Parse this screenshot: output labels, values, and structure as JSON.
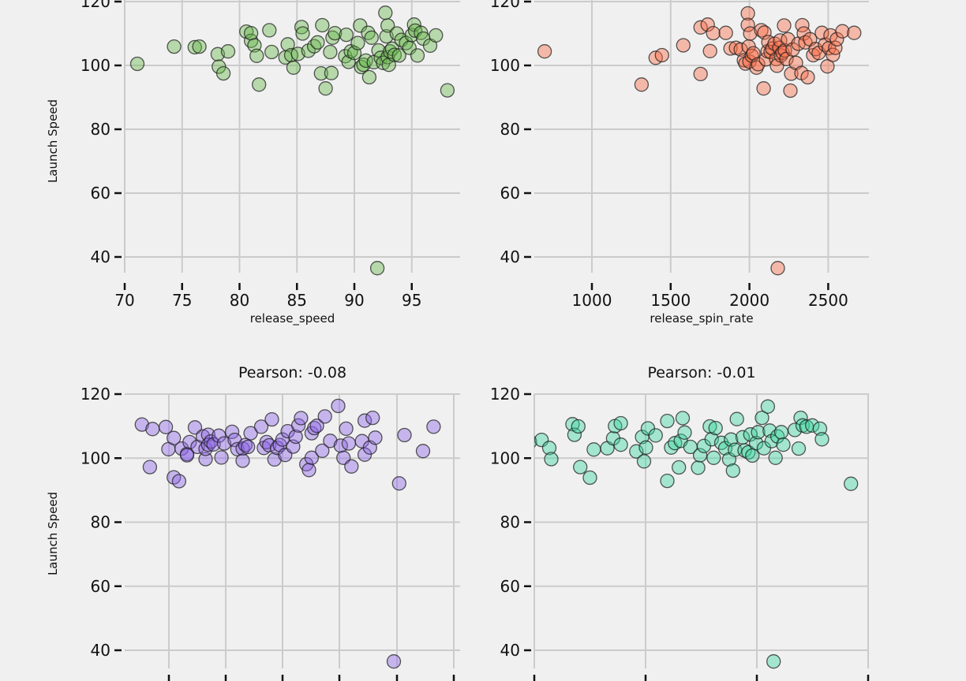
{
  "chart_data": [
    {
      "type": "scatter",
      "xlabel": "release_speed",
      "ylabel": "Launch Speed",
      "title": "",
      "color": "#66b84a",
      "x_ticks": [
        70,
        75,
        80,
        85,
        90,
        95
      ],
      "y_ticks": [
        40,
        60,
        80,
        100,
        120
      ],
      "xlim": [
        69,
        98.5
      ],
      "ylim": [
        33,
        120.5
      ],
      "grid": true,
      "points": [
        [
          71.1,
          100.5
        ],
        [
          74.3,
          105.9
        ],
        [
          76.1,
          105.7
        ],
        [
          76.5,
          105.9
        ],
        [
          78.1,
          103.5
        ],
        [
          78.2,
          99.6
        ],
        [
          78.6,
          97.5
        ],
        [
          79.0,
          104.4
        ],
        [
          80.6,
          110.6
        ],
        [
          81.0,
          107.7
        ],
        [
          81.0,
          110.1
        ],
        [
          81.3,
          106.3
        ],
        [
          81.5,
          103.0
        ],
        [
          81.7,
          94.0
        ],
        [
          82.6,
          111.0
        ],
        [
          82.8,
          104.2
        ],
        [
          84.0,
          102.5
        ],
        [
          84.2,
          106.6
        ],
        [
          84.5,
          103.2
        ],
        [
          84.7,
          99.3
        ],
        [
          85.1,
          103.6
        ],
        [
          85.4,
          112.0
        ],
        [
          85.5,
          110.0
        ],
        [
          86.0,
          104.6
        ],
        [
          86.5,
          106.0
        ],
        [
          86.8,
          107.2
        ],
        [
          87.1,
          97.5
        ],
        [
          87.2,
          112.6
        ],
        [
          87.5,
          92.8
        ],
        [
          87.9,
          104.2
        ],
        [
          88.0,
          97.6
        ],
        [
          88.1,
          108.7
        ],
        [
          88.3,
          110.1
        ],
        [
          89.2,
          102.9
        ],
        [
          89.3,
          109.6
        ],
        [
          89.5,
          101.1
        ],
        [
          89.7,
          104.4
        ],
        [
          90.0,
          103.9
        ],
        [
          90.3,
          107.0
        ],
        [
          90.5,
          112.5
        ],
        [
          90.6,
          99.5
        ],
        [
          90.8,
          100.2
        ],
        [
          91.0,
          101.5
        ],
        [
          91.2,
          110.2
        ],
        [
          91.3,
          96.3
        ],
        [
          91.5,
          108.7
        ],
        [
          91.7,
          101.0
        ],
        [
          92.0,
          36.5
        ],
        [
          92.1,
          104.7
        ],
        [
          92.3,
          102.4
        ],
        [
          92.5,
          100.8
        ],
        [
          92.7,
          116.5
        ],
        [
          92.8,
          109.1
        ],
        [
          92.9,
          112.5
        ],
        [
          92.9,
          102.6
        ],
        [
          93.0,
          100.2
        ],
        [
          93.1,
          104.4
        ],
        [
          93.3,
          105.2
        ],
        [
          93.5,
          103.3
        ],
        [
          93.7,
          110.0
        ],
        [
          93.9,
          103.1
        ],
        [
          94.1,
          108.0
        ],
        [
          94.5,
          107.0
        ],
        [
          94.8,
          105.5
        ],
        [
          95.0,
          109.5
        ],
        [
          95.2,
          112.8
        ],
        [
          95.3,
          110.9
        ],
        [
          95.5,
          103.1
        ],
        [
          95.8,
          110.2
        ],
        [
          96.0,
          108.4
        ],
        [
          96.6,
          106.2
        ],
        [
          97.1,
          109.4
        ],
        [
          98.1,
          92.2
        ]
      ]
    },
    {
      "type": "scatter",
      "xlabel": "release_spin_rate",
      "ylabel": "",
      "title": "",
      "color": "#fa6c45",
      "x_ticks": [
        1000,
        1500,
        2000,
        2500
      ],
      "y_ticks": [
        40,
        60,
        80,
        100,
        120
      ],
      "xlim": [
        600,
        2750
      ],
      "ylim": [
        33,
        120.5
      ],
      "grid": true,
      "points": [
        [
          700,
          104.4
        ],
        [
          1315,
          94.0
        ],
        [
          1405,
          102.4
        ],
        [
          1445,
          103.2
        ],
        [
          1580,
          106.3
        ],
        [
          1690,
          111.9
        ],
        [
          1690,
          97.3
        ],
        [
          1735,
          112.8
        ],
        [
          1750,
          104.5
        ],
        [
          1770,
          110.1
        ],
        [
          1850,
          110.2
        ],
        [
          1880,
          105.3
        ],
        [
          1915,
          105.5
        ],
        [
          1945,
          105.0
        ],
        [
          1965,
          101.6
        ],
        [
          1975,
          100.6
        ],
        [
          1990,
          116.3
        ],
        [
          1990,
          112.7
        ],
        [
          1995,
          105.9
        ],
        [
          2000,
          101.2
        ],
        [
          2005,
          110.0
        ],
        [
          2015,
          103.0
        ],
        [
          2025,
          103.8
        ],
        [
          2045,
          99.3
        ],
        [
          2055,
          100.4
        ],
        [
          2075,
          111.0
        ],
        [
          2090,
          92.8
        ],
        [
          2095,
          110.3
        ],
        [
          2105,
          101.9
        ],
        [
          2115,
          104.4
        ],
        [
          2120,
          107.3
        ],
        [
          2135,
          104.2
        ],
        [
          2145,
          105.3
        ],
        [
          2160,
          106.8
        ],
        [
          2170,
          102.0
        ],
        [
          2175,
          99.9
        ],
        [
          2180,
          36.5
        ],
        [
          2190,
          105.5
        ],
        [
          2195,
          107.8
        ],
        [
          2200,
          103.1
        ],
        [
          2210,
          104.0
        ],
        [
          2220,
          112.5
        ],
        [
          2225,
          104.7
        ],
        [
          2235,
          102.0
        ],
        [
          2245,
          108.2
        ],
        [
          2260,
          92.1
        ],
        [
          2265,
          97.4
        ],
        [
          2275,
          105.0
        ],
        [
          2295,
          100.8
        ],
        [
          2310,
          106.8
        ],
        [
          2330,
          97.6
        ],
        [
          2335,
          112.6
        ],
        [
          2345,
          110.0
        ],
        [
          2355,
          107.2
        ],
        [
          2370,
          96.3
        ],
        [
          2385,
          108.2
        ],
        [
          2405,
          103.2
        ],
        [
          2420,
          105.1
        ],
        [
          2440,
          103.9
        ],
        [
          2460,
          110.2
        ],
        [
          2480,
          106.5
        ],
        [
          2495,
          99.7
        ],
        [
          2505,
          105.4
        ],
        [
          2515,
          109.4
        ],
        [
          2530,
          103.3
        ],
        [
          2545,
          105.5
        ],
        [
          2555,
          108.2
        ],
        [
          2590,
          110.7
        ],
        [
          2665,
          110.2
        ]
      ]
    },
    {
      "type": "scatter",
      "xlabel": "",
      "ylabel": "Launch Speed",
      "title": "Pearson: -0.08",
      "color": "#8c64e6",
      "y_ticks": [
        40,
        60,
        80,
        100,
        120
      ],
      "ylim": [
        33,
        120.5
      ],
      "grid": true,
      "points": [
        [
          0.08,
          107.4
        ],
        [
          0.19,
          110.5
        ],
        [
          0.22,
          97.2
        ],
        [
          0.23,
          109.1
        ],
        [
          0.28,
          109.7
        ],
        [
          0.29,
          102.8
        ],
        [
          0.31,
          106.3
        ],
        [
          0.31,
          94.0
        ],
        [
          0.33,
          92.8
        ],
        [
          0.34,
          103.0
        ],
        [
          0.36,
          101.3
        ],
        [
          0.36,
          100.9
        ],
        [
          0.37,
          105.0
        ],
        [
          0.39,
          109.6
        ],
        [
          0.4,
          103.5
        ],
        [
          0.42,
          106.8
        ],
        [
          0.43,
          99.7
        ],
        [
          0.43,
          102.9
        ],
        [
          0.44,
          107.3
        ],
        [
          0.44,
          104.2
        ],
        [
          0.45,
          105.2
        ],
        [
          0.46,
          104.3
        ],
        [
          0.48,
          107.0
        ],
        [
          0.49,
          100.2
        ],
        [
          0.5,
          104.6
        ],
        [
          0.53,
          108.2
        ],
        [
          0.54,
          105.7
        ],
        [
          0.55,
          102.8
        ],
        [
          0.57,
          103.0
        ],
        [
          0.57,
          99.2
        ],
        [
          0.58,
          104.1
        ],
        [
          0.59,
          103.5
        ],
        [
          0.6,
          107.8
        ],
        [
          0.64,
          109.8
        ],
        [
          0.65,
          103.2
        ],
        [
          0.66,
          105.0
        ],
        [
          0.67,
          104.0
        ],
        [
          0.68,
          112.1
        ],
        [
          0.69,
          99.6
        ],
        [
          0.7,
          103.2
        ],
        [
          0.71,
          104.1
        ],
        [
          0.72,
          105.8
        ],
        [
          0.73,
          101.0
        ],
        [
          0.74,
          108.4
        ],
        [
          0.76,
          103.6
        ],
        [
          0.77,
          106.7
        ],
        [
          0.78,
          110.2
        ],
        [
          0.79,
          112.5
        ],
        [
          0.81,
          98.1
        ],
        [
          0.82,
          96.3
        ],
        [
          0.83,
          100.1
        ],
        [
          0.83,
          107.8
        ],
        [
          0.84,
          109.4
        ],
        [
          0.85,
          110.1
        ],
        [
          0.87,
          102.3
        ],
        [
          0.88,
          113.0
        ],
        [
          0.9,
          105.4
        ],
        [
          0.93,
          116.3
        ],
        [
          0.94,
          103.9
        ],
        [
          0.95,
          100.1
        ],
        [
          0.96,
          109.2
        ],
        [
          0.97,
          104.6
        ],
        [
          0.98,
          97.4
        ],
        [
          1.02,
          105.3
        ],
        [
          1.03,
          111.7
        ],
        [
          1.03,
          101.1
        ],
        [
          1.05,
          103.3
        ],
        [
          1.06,
          112.6
        ],
        [
          1.07,
          106.4
        ],
        [
          1.14,
          36.5
        ],
        [
          1.16,
          92.1
        ],
        [
          1.18,
          107.2
        ],
        [
          1.25,
          102.2
        ],
        [
          1.29,
          109.8
        ]
      ]
    },
    {
      "type": "scatter",
      "xlabel": "",
      "ylabel": "",
      "title": "Pearson: -0.01",
      "color": "#3ad6a0",
      "y_ticks": [
        40,
        60,
        80,
        100,
        120
      ],
      "ylim": [
        33,
        120.5
      ],
      "grid": true,
      "points": [
        [
          0.05,
          100.3
        ],
        [
          0.22,
          104.2
        ],
        [
          0.25,
          105.7
        ],
        [
          0.3,
          105.1
        ],
        [
          0.36,
          105.7
        ],
        [
          0.4,
          103.2
        ],
        [
          0.41,
          99.7
        ],
        [
          0.52,
          110.6
        ],
        [
          0.53,
          107.3
        ],
        [
          0.55,
          109.9
        ],
        [
          0.56,
          97.2
        ],
        [
          0.61,
          93.9
        ],
        [
          0.63,
          102.7
        ],
        [
          0.7,
          103.1
        ],
        [
          0.73,
          106.2
        ],
        [
          0.74,
          110.0
        ],
        [
          0.77,
          104.2
        ],
        [
          0.77,
          110.9
        ],
        [
          0.85,
          102.1
        ],
        [
          0.88,
          106.6
        ],
        [
          0.89,
          99.0
        ],
        [
          0.9,
          103.3
        ],
        [
          0.91,
          109.3
        ],
        [
          0.95,
          107.1
        ],
        [
          1.01,
          111.6
        ],
        [
          1.01,
          92.9
        ],
        [
          1.03,
          103.3
        ],
        [
          1.05,
          104.7
        ],
        [
          1.07,
          97.1
        ],
        [
          1.08,
          105.4
        ],
        [
          1.09,
          112.5
        ],
        [
          1.1,
          108.0
        ],
        [
          1.13,
          103.5
        ],
        [
          1.17,
          97.0
        ],
        [
          1.18,
          100.9
        ],
        [
          1.2,
          103.8
        ],
        [
          1.23,
          109.9
        ],
        [
          1.24,
          105.9
        ],
        [
          1.25,
          100.1
        ],
        [
          1.26,
          109.4
        ],
        [
          1.29,
          104.8
        ],
        [
          1.31,
          103.1
        ],
        [
          1.33,
          99.6
        ],
        [
          1.34,
          105.8
        ],
        [
          1.35,
          96.1
        ],
        [
          1.36,
          102.6
        ],
        [
          1.37,
          112.2
        ],
        [
          1.4,
          106.5
        ],
        [
          1.41,
          102.4
        ],
        [
          1.43,
          101.8
        ],
        [
          1.44,
          107.4
        ],
        [
          1.45,
          100.8
        ],
        [
          1.47,
          104.7
        ],
        [
          1.48,
          108.1
        ],
        [
          1.5,
          112.6
        ],
        [
          1.51,
          103.1
        ],
        [
          1.53,
          116.1
        ],
        [
          1.54,
          108.6
        ],
        [
          1.55,
          105.3
        ],
        [
          1.56,
          36.5
        ],
        [
          1.57,
          100.1
        ],
        [
          1.58,
          106.8
        ],
        [
          1.6,
          108.1
        ],
        [
          1.61,
          104.2
        ],
        [
          1.67,
          108.8
        ],
        [
          1.69,
          103.0
        ],
        [
          1.7,
          112.6
        ],
        [
          1.71,
          110.2
        ],
        [
          1.73,
          109.8
        ],
        [
          1.76,
          110.2
        ],
        [
          1.8,
          109.2
        ],
        [
          1.81,
          105.9
        ],
        [
          1.96,
          92.0
        ]
      ]
    }
  ]
}
